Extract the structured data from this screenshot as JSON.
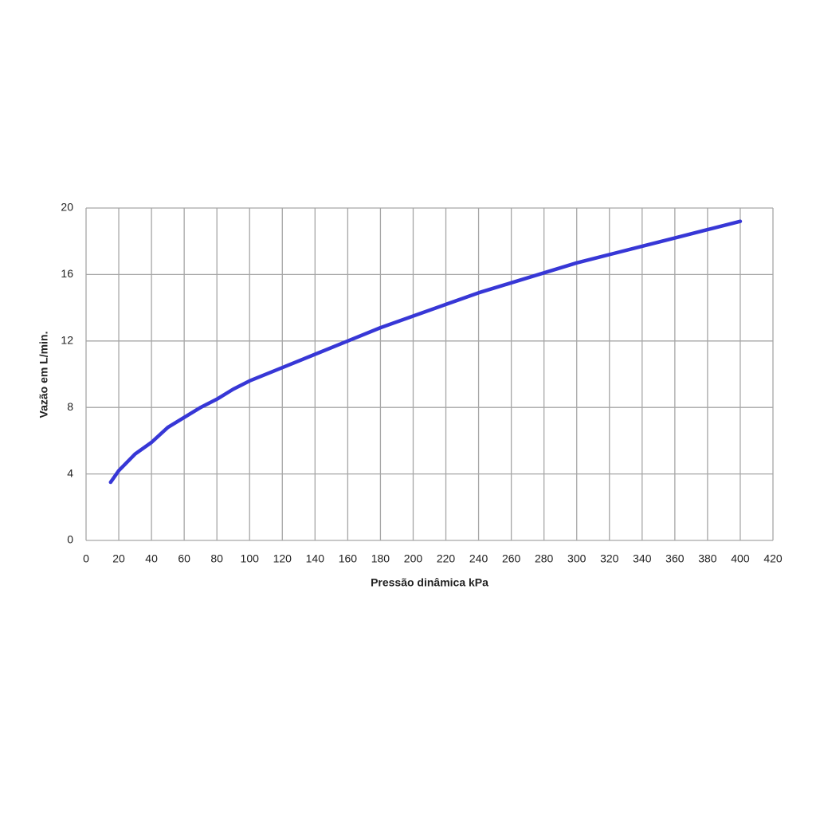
{
  "chart_data": {
    "type": "line",
    "x_label": "Pressão dinâmica kPa",
    "y_label": "Vazão em L/min.",
    "xlim": [
      0,
      420
    ],
    "xticks": [
      0,
      20,
      40,
      60,
      80,
      100,
      120,
      140,
      160,
      180,
      200,
      220,
      240,
      260,
      280,
      300,
      320,
      340,
      360,
      380,
      400,
      420
    ],
    "ylim": [
      0,
      20
    ],
    "yticks": [
      0,
      4,
      8,
      12,
      16,
      20
    ],
    "grid": true,
    "series": [
      {
        "color": "#3737d6",
        "x": [
          15,
          20,
          30,
          40,
          50,
          60,
          70,
          80,
          90,
          100,
          120,
          140,
          160,
          180,
          200,
          220,
          240,
          260,
          280,
          300,
          320,
          340,
          360,
          380,
          400
        ],
        "values": [
          3.5,
          4.2,
          5.2,
          5.9,
          6.8,
          7.4,
          8.0,
          8.5,
          9.1,
          9.6,
          10.4,
          11.2,
          12.0,
          12.8,
          13.5,
          14.2,
          14.9,
          15.5,
          16.1,
          16.7,
          17.2,
          17.7,
          18.2,
          18.7,
          19.2
        ]
      }
    ]
  }
}
